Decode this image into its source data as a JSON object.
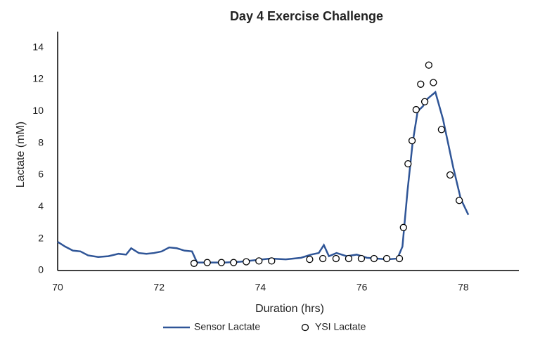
{
  "chart_data": {
    "type": "line",
    "title": "Day 4 Exercise Challenge",
    "x_label": "Duration (hrs)",
    "y_label": "Lactate (mM)",
    "xlim": [
      70,
      79
    ],
    "xticks": [
      70,
      72,
      74,
      76,
      78
    ],
    "ylim": [
      0,
      15
    ],
    "yticks": [
      0,
      2,
      4,
      6,
      8,
      10,
      12,
      14
    ],
    "grid": false,
    "legend": "bottom",
    "series": [
      {
        "name": "Sensor Lactate",
        "type": "line",
        "color": "#2f5597",
        "x": [
          70.0,
          70.15,
          70.3,
          70.45,
          70.6,
          70.8,
          71.0,
          71.2,
          71.35,
          71.45,
          71.6,
          71.75,
          71.9,
          72.05,
          72.2,
          72.35,
          72.5,
          72.65,
          72.75,
          73.0,
          73.3,
          73.6,
          73.9,
          74.2,
          74.5,
          74.8,
          75.0,
          75.15,
          75.25,
          75.35,
          75.5,
          75.7,
          75.9,
          76.1,
          76.3,
          76.5,
          76.7,
          76.8,
          76.9,
          77.0,
          77.1,
          77.2,
          77.3,
          77.45,
          77.6,
          77.8,
          77.95,
          78.1
        ],
        "values": [
          1.8,
          1.5,
          1.25,
          1.2,
          0.95,
          0.85,
          0.9,
          1.05,
          1.0,
          1.4,
          1.1,
          1.05,
          1.1,
          1.2,
          1.45,
          1.4,
          1.25,
          1.2,
          0.5,
          0.5,
          0.5,
          0.55,
          0.65,
          0.75,
          0.7,
          0.8,
          1.0,
          1.1,
          1.6,
          0.9,
          1.1,
          0.9,
          1.0,
          0.8,
          0.75,
          0.7,
          0.75,
          1.5,
          5.0,
          8.0,
          10.0,
          10.3,
          10.8,
          11.2,
          9.5,
          6.5,
          4.5,
          3.5
        ]
      },
      {
        "name": "YSI Lactate",
        "type": "scatter",
        "color": "#ffffff",
        "edgecolor": "#000000",
        "x": [
          72.69,
          72.95,
          73.23,
          73.47,
          73.72,
          73.97,
          74.22,
          74.97,
          75.23,
          75.49,
          75.74,
          75.99,
          76.24,
          76.49,
          76.74,
          76.82,
          76.91,
          76.99,
          77.07,
          77.16,
          77.24,
          77.32,
          77.41,
          77.57,
          77.74,
          77.92
        ],
        "values": [
          0.45,
          0.5,
          0.5,
          0.5,
          0.55,
          0.6,
          0.6,
          0.7,
          0.75,
          0.75,
          0.75,
          0.75,
          0.75,
          0.75,
          0.75,
          2.7,
          6.7,
          8.15,
          10.1,
          11.7,
          10.6,
          12.9,
          11.8,
          8.85,
          6.0,
          4.4
        ]
      }
    ]
  }
}
